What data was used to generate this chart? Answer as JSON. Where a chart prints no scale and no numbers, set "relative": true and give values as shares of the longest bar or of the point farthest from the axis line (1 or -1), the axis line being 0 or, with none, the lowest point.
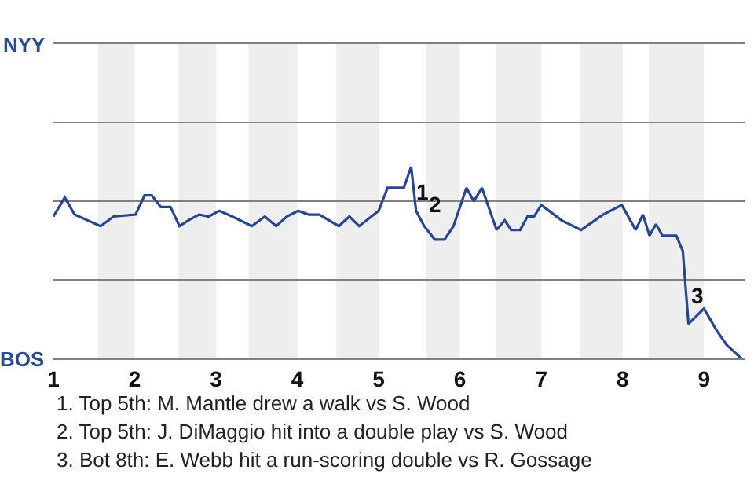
{
  "chart_data": {
    "type": "line",
    "relative": true,
    "x": [
      1,
      1.14,
      1.26,
      1.42,
      1.58,
      1.74,
      2.01,
      2.12,
      2.21,
      2.32,
      2.44,
      2.55,
      2.66,
      2.79,
      2.91,
      3.04,
      3.2,
      3.44,
      3.6,
      3.74,
      3.87,
      4.01,
      4.14,
      4.27,
      4.51,
      4.64,
      4.76,
      5,
      5.11,
      5.31,
      5.4,
      5.46,
      5.56,
      5.69,
      5.81,
      5.92,
      6.08,
      6.17,
      6.27,
      6.45,
      6.55,
      6.63,
      6.74,
      6.83,
      6.91,
      7,
      7.25,
      7.49,
      7.76,
      7.99,
      8.16,
      8.25,
      8.33,
      8.41,
      8.49,
      8.66,
      8.74,
      8.81,
      9,
      9.15,
      9.28,
      9.46
    ],
    "series": [
      {
        "color": "#27468f",
        "values": [
          0.74,
          0.84,
          0.75,
          0.72,
          0.69,
          0.74,
          0.75,
          0.85,
          0.85,
          0.79,
          0.79,
          0.69,
          0.72,
          0.75,
          0.74,
          0.77,
          0.74,
          0.69,
          0.74,
          0.69,
          0.74,
          0.77,
          0.75,
          0.75,
          0.69,
          0.74,
          0.69,
          0.77,
          0.89,
          0.89,
          1,
          0.77,
          0.69,
          0.62,
          0.62,
          0.69,
          0.89,
          0.82,
          0.89,
          0.67,
          0.72,
          0.67,
          0.67,
          0.74,
          0.74,
          0.8,
          0.72,
          0.67,
          0.75,
          0.8,
          0.67,
          0.75,
          0.64,
          0.7,
          0.64,
          0.64,
          0.56,
          0.18,
          0.26,
          0.15,
          0.07,
          0
        ]
      }
    ],
    "xlim": [
      1,
      9.5
    ],
    "xticks": [
      1,
      2,
      3,
      4,
      5,
      6,
      7,
      8,
      9
    ],
    "ref_lines": [
      {
        "axis": "y",
        "value": 0.41,
        "color": "#808080"
      },
      {
        "axis": "y",
        "value": 0.82,
        "color": "#808080"
      },
      {
        "axis": "y",
        "value": 1.23,
        "color": "#808080"
      }
    ],
    "legend": false,
    "marker": "none",
    "line_style": "solid",
    "bands": [
      {
        "axis": "x",
        "from": 1.55,
        "to": 2,
        "color": "#eeeeee"
      },
      {
        "axis": "x",
        "from": 2.54,
        "to": 3,
        "color": "#eeeeee"
      },
      {
        "axis": "x",
        "from": 3.4,
        "to": 4,
        "color": "#eeeeee"
      },
      {
        "axis": "x",
        "from": 4.48,
        "to": 5,
        "color": "#eeeeee"
      },
      {
        "axis": "x",
        "from": 5.58,
        "to": 6,
        "color": "#eeeeee"
      },
      {
        "axis": "x",
        "from": 6.44,
        "to": 7,
        "color": "#eeeeee"
      },
      {
        "axis": "x",
        "from": 7.47,
        "to": 8,
        "color": "#eeeeee"
      },
      {
        "axis": "x",
        "from": 8.32,
        "to": 9,
        "color": "#eeeeee"
      }
    ],
    "annotations": [
      "NYY",
      "BOS",
      {
        "text": "1",
        "x": 5.42,
        "y": 0.87
      },
      {
        "text": "2",
        "x": 5.58,
        "y": 0.8
      },
      {
        "text": "3",
        "x": 8.81,
        "y": 0.33
      },
      "1. Top 5th: M. Mantle drew a walk vs S. Wood",
      "2. Top 5th: J. DiMaggio hit into a double play vs S. Wood",
      "3. Bot 8th: E. Webb hit a run-scoring double vs R. Gossage"
    ]
  }
}
